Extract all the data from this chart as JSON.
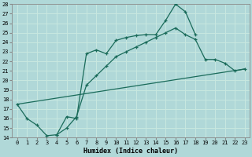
{
  "xlabel": "Humidex (Indice chaleur)",
  "bg_color": "#b0d8d8",
  "grid_color": "#c8e8e0",
  "line_color": "#1a6b5a",
  "xlim": [
    -0.5,
    23.5
  ],
  "ylim": [
    14,
    28
  ],
  "xticks": [
    0,
    1,
    2,
    3,
    4,
    5,
    6,
    7,
    8,
    9,
    10,
    11,
    12,
    13,
    14,
    15,
    16,
    17,
    18,
    19,
    20,
    21,
    22,
    23
  ],
  "yticks": [
    14,
    15,
    16,
    17,
    18,
    19,
    20,
    21,
    22,
    23,
    24,
    25,
    26,
    27,
    28
  ],
  "curve1_x": [
    0,
    1,
    2,
    3,
    4,
    5,
    6,
    7,
    8,
    9,
    10,
    11,
    12,
    13,
    14,
    15,
    16,
    17,
    18
  ],
  "curve1_y": [
    17.5,
    16.0,
    15.3,
    14.2,
    14.3,
    16.2,
    16.0,
    22.8,
    23.2,
    22.8,
    24.2,
    24.5,
    24.7,
    24.8,
    24.8,
    26.3,
    28.0,
    27.2,
    24.8
  ],
  "curve2_x": [
    4,
    5,
    6,
    7,
    8,
    9,
    10,
    11,
    12,
    13,
    14,
    15,
    16,
    17,
    18,
    19,
    20,
    21,
    22,
    23
  ],
  "curve2_y": [
    14.3,
    15.0,
    16.2,
    19.5,
    20.5,
    21.5,
    22.5,
    23.0,
    23.5,
    24.0,
    24.5,
    25.0,
    25.5,
    24.8,
    24.3,
    22.2,
    22.2,
    21.8,
    21.0,
    21.2
  ],
  "curve3_x": [
    0,
    23
  ],
  "curve3_y": [
    17.5,
    21.2
  ]
}
